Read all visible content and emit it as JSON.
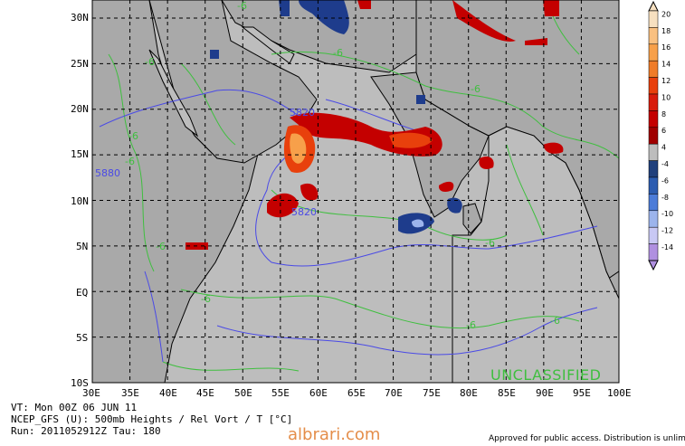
{
  "map": {
    "lat_labels": [
      "30N",
      "25N",
      "20N",
      "15N",
      "10N",
      "5N",
      "EQ",
      "5S",
      "10S"
    ],
    "lon_labels": [
      "30E",
      "35E",
      "40E",
      "45E",
      "50E",
      "55E",
      "60E",
      "65E",
      "70E",
      "75E",
      "80E",
      "85E",
      "90E",
      "95E",
      "100E"
    ],
    "contours": {
      "height_labels": [
        "5820",
        "5880",
        "5820"
      ],
      "temp_labels": [
        "-6",
        "-6",
        "-6",
        "-6",
        "-6",
        "-6",
        "-6",
        "-6",
        "-6",
        "-6",
        "-6"
      ]
    },
    "colors": {
      "land": "#a9a9a9",
      "ocean": "#bdbdbd",
      "height_contour": "#4a4ae6",
      "temp_contour": "#3fbf3f",
      "vort_pos_dark": "#c40000",
      "vort_pos_mid": "#e8400c",
      "vort_pos_light": "#f7a04a",
      "vort_neg_dark": "#1e3c8c",
      "vort_neg_mid": "#3c64c8"
    }
  },
  "legend": {
    "values": [
      "20",
      "18",
      "16",
      "14",
      "12",
      "10",
      "8",
      "6",
      "4",
      "-4",
      "-6",
      "-8",
      "-10",
      "-12",
      "-14"
    ],
    "colors": [
      "#f7e0c0",
      "#f9c080",
      "#f7a04a",
      "#f07c28",
      "#e8400c",
      "#d81c0c",
      "#c40000",
      "#a00000",
      "#bdbdbd",
      "#20407c",
      "#2c5cb0",
      "#4c7cd8",
      "#9cb4ec",
      "#c8c8f4",
      "#b090e0"
    ]
  },
  "overlay": {
    "classification": "UNCLASSIFIED"
  },
  "footer": {
    "line1": "VT: Mon 00Z 06 JUN 11",
    "line2": "NCEP_GFS (U): 500mb Heights / Rel Vort / T [°C]",
    "line3": "Run: 2011052912Z Tau: 180",
    "watermark": "albrari.com",
    "approved": "Approved for public access. Distribution is unlimited"
  }
}
